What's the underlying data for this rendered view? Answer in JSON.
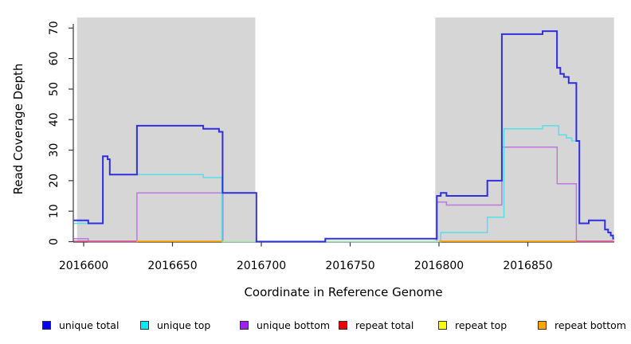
{
  "chart_data": {
    "type": "line",
    "subtype": "step",
    "title": "",
    "xlabel": "Coordinate in Reference Genome",
    "ylabel": "Read Coverage Depth",
    "xlim": [
      2016594.5,
      2016898.5
    ],
    "ylim": [
      0,
      73.4
    ],
    "x_ticks": [
      2016600,
      2016650,
      2016700,
      2016750,
      2016800,
      2016850
    ],
    "y_ticks": [
      0,
      10,
      20,
      30,
      40,
      50,
      60,
      70
    ],
    "grid": "off",
    "legend_position": "bottom",
    "shaded_regions": [
      {
        "name": "left-covered-region",
        "x0": 2016596.3,
        "x1": 2016696.6,
        "color": "#d6d6d6"
      },
      {
        "name": "right-covered-region",
        "x0": 2016797.9,
        "x1": 2016898.5,
        "color": "#d6d6d6"
      }
    ],
    "series": [
      {
        "name": "unique bottom",
        "color": "#bf77e0",
        "width": 1.5,
        "points": [
          [
            2016594.5,
            1
          ],
          [
            2016602.6,
            0
          ],
          [
            2016630,
            16
          ],
          [
            2016678.4,
            0
          ],
          [
            2016798.7,
            13
          ],
          [
            2016804.2,
            12
          ],
          [
            2016835.4,
            31
          ],
          [
            2016866.5,
            19
          ],
          [
            2016877.3,
            0
          ]
        ]
      },
      {
        "name": "unique top",
        "color": "#55dfe8",
        "width": 1.5,
        "points": [
          [
            2016594.5,
            6
          ],
          [
            2016610.8,
            28
          ],
          [
            2016613.5,
            27
          ],
          [
            2016614.7,
            22
          ],
          [
            2016667.3,
            21
          ],
          [
            2016677.8,
            0
          ],
          [
            2016801,
            3
          ],
          [
            2016827.2,
            8
          ],
          [
            2016836.6,
            37
          ],
          [
            2016858.3,
            38
          ],
          [
            2016867.4,
            35
          ],
          [
            2016871.7,
            34
          ],
          [
            2016874.7,
            33
          ],
          [
            2016879,
            6
          ],
          [
            2016884.3,
            7
          ],
          [
            2016893.4,
            4
          ],
          [
            2016895.2,
            3
          ],
          [
            2016896.7,
            2
          ],
          [
            2016898,
            1
          ]
        ]
      },
      {
        "name": "unique total",
        "color": "#2f2fe0",
        "width": 2,
        "points": [
          [
            2016594.5,
            7
          ],
          [
            2016602.6,
            6
          ],
          [
            2016610.8,
            28
          ],
          [
            2016613.5,
            27
          ],
          [
            2016614.7,
            22
          ],
          [
            2016630,
            38
          ],
          [
            2016667.3,
            37
          ],
          [
            2016676.2,
            36
          ],
          [
            2016678.2,
            16
          ],
          [
            2016697.2,
            0
          ],
          [
            2016736,
            1
          ],
          [
            2016798.8,
            15
          ],
          [
            2016801,
            16
          ],
          [
            2016804.2,
            15
          ],
          [
            2016827.2,
            20
          ],
          [
            2016835.4,
            68
          ],
          [
            2016858.3,
            69
          ],
          [
            2016866.4,
            57
          ],
          [
            2016868.3,
            55
          ],
          [
            2016870.3,
            54
          ],
          [
            2016873,
            52
          ],
          [
            2016877.3,
            33
          ],
          [
            2016879,
            6
          ],
          [
            2016884.3,
            7
          ],
          [
            2016893.4,
            4
          ],
          [
            2016895.2,
            3
          ],
          [
            2016896.7,
            2
          ],
          [
            2016898,
            1
          ]
        ]
      }
    ],
    "baseline_segments_at_zero": [
      {
        "name": "repeat-total-zero-left",
        "x0": 2016594.5,
        "x1": 2016629.7,
        "value": 0,
        "color": "#d4548c"
      },
      {
        "name": "repeat-bottom-zero-left",
        "x0": 2016629.7,
        "x1": 2016678.4,
        "value": 0,
        "color": "#ffa500"
      },
      {
        "name": "repeat-top-zero-middle",
        "x0": 2016678.4,
        "x1": 2016800,
        "value": 0,
        "color": "#badfb2"
      },
      {
        "name": "repeat-bottom-zero-right",
        "x0": 2016800,
        "x1": 2016877.3,
        "value": 0,
        "color": "#ffa500"
      },
      {
        "name": "repeat-total-zero-right",
        "x0": 2016877.3,
        "x1": 2016898.5,
        "value": 0,
        "color": "#d4548c"
      }
    ],
    "legend": [
      {
        "label": "unique total",
        "color": "#0000f5"
      },
      {
        "label": "unique top",
        "color": "#00ecf5"
      },
      {
        "label": "unique bottom",
        "color": "#a020f0"
      },
      {
        "label": "repeat total",
        "color": "#e80000"
      },
      {
        "label": "repeat top",
        "color": "#fcfc00"
      },
      {
        "label": "repeat bottom",
        "color": "#ffa500"
      }
    ]
  }
}
